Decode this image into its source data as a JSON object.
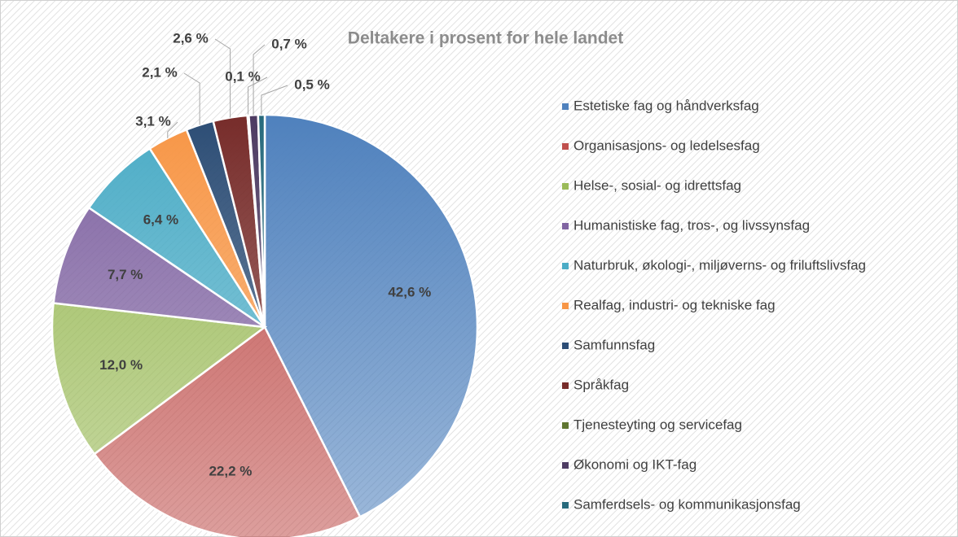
{
  "chart_data": {
    "type": "pie",
    "title": "Deltakere i prosent for hele landet",
    "categories": [
      "Estetiske fag og håndverksfag",
      "Organisasjons- og ledelsesfag",
      "Helse-, sosial- og idrettsfag",
      "Humanistiske fag, tros-, og livssynsfag",
      "Naturbruk, økologi-, miljøverns- og friluftslivsfag",
      "Realfag, industri- og tekniske fag",
      "Samfunnsfag",
      "Språkfag",
      "Tjenesteyting og servicefag",
      "Økonomi og IKT-fag",
      "Samferdsels- og kommunikasjonsfag"
    ],
    "values": [
      42.6,
      22.2,
      12.0,
      7.7,
      6.4,
      3.1,
      2.1,
      2.6,
      0.1,
      0.7,
      0.5
    ],
    "value_labels": [
      "42,6 %",
      "22,2 %",
      "12,0 %",
      "7,7 %",
      "6,4 %",
      "3,1 %",
      "2,1 %",
      "2,6 %",
      "0,1 %",
      "0,7 %",
      "0,5 %"
    ],
    "colors": [
      "#4f81bd",
      "#c0504d",
      "#9bbb59",
      "#8064a2",
      "#4bacc6",
      "#f79646",
      "#2c4d75",
      "#772c2a",
      "#5f7530",
      "#4d3b62",
      "#276a7c"
    ],
    "legend": "right"
  }
}
